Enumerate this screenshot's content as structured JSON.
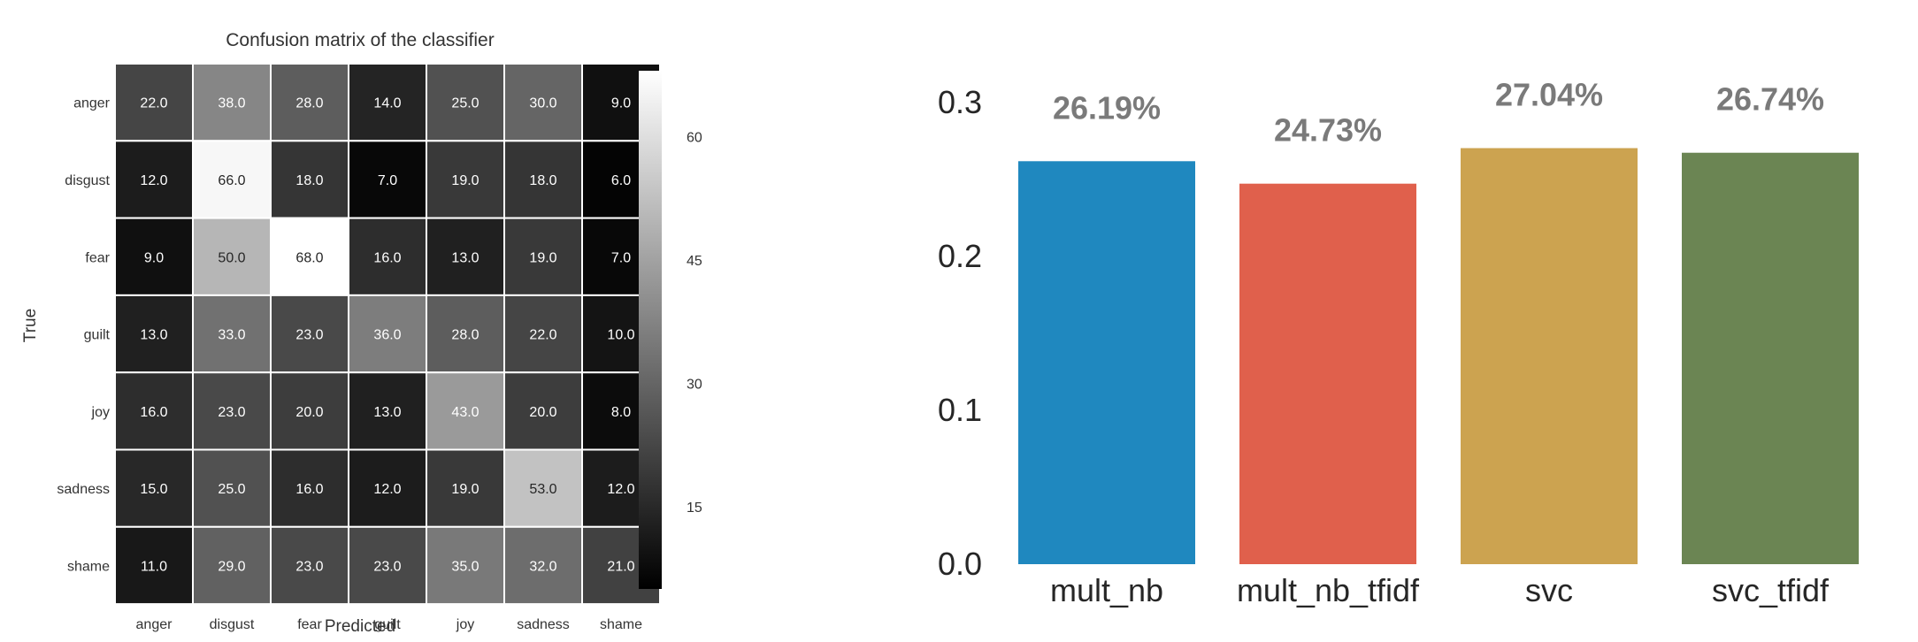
{
  "chart_data": [
    {
      "type": "heatmap",
      "title": "Confusion matrix of the classifier",
      "xlabel": "Predicted",
      "ylabel": "True",
      "x_categories": [
        "anger",
        "disgust",
        "fear",
        "guilt",
        "joy",
        "sadness",
        "shame"
      ],
      "y_categories": [
        "anger",
        "disgust",
        "fear",
        "guilt",
        "joy",
        "sadness",
        "shame"
      ],
      "values": [
        [
          22.0,
          38.0,
          28.0,
          14.0,
          25.0,
          30.0,
          9.0
        ],
        [
          12.0,
          66.0,
          18.0,
          7.0,
          19.0,
          18.0,
          6.0
        ],
        [
          9.0,
          50.0,
          68.0,
          16.0,
          13.0,
          19.0,
          7.0
        ],
        [
          13.0,
          33.0,
          23.0,
          36.0,
          28.0,
          22.0,
          10.0
        ],
        [
          16.0,
          23.0,
          20.0,
          13.0,
          43.0,
          20.0,
          8.0
        ],
        [
          15.0,
          25.0,
          16.0,
          12.0,
          19.0,
          53.0,
          12.0
        ],
        [
          11.0,
          29.0,
          23.0,
          23.0,
          35.0,
          32.0,
          21.0
        ]
      ],
      "cell_labels": [
        [
          "22.0",
          "38.0",
          "28.0",
          "14.0",
          "25.0",
          "30.0",
          "9.0"
        ],
        [
          "12.0",
          "66.0",
          "18.0",
          "7.0",
          "19.0",
          "18.0",
          "6.0"
        ],
        [
          "9.0",
          "50.0",
          "68.0",
          "16.0",
          "13.0",
          "19.0",
          "7.0"
        ],
        [
          "13.0",
          "33.0",
          "23.0",
          "36.0",
          "28.0",
          "22.0",
          "10.0"
        ],
        [
          "16.0",
          "23.0",
          "20.0",
          "13.0",
          "43.0",
          "20.0",
          "8.0"
        ],
        [
          "15.0",
          "25.0",
          "16.0",
          "12.0",
          "19.0",
          "53.0",
          "12.0"
        ],
        [
          "11.0",
          "29.0",
          "23.0",
          "23.0",
          "35.0",
          "32.0",
          "21.0"
        ]
      ],
      "colorbar": {
        "colormap": "gray",
        "range": [
          5,
          68
        ],
        "ticks": [
          15,
          30,
          45,
          60
        ],
        "tick_labels": [
          "15",
          "30",
          "45",
          "60"
        ]
      },
      "grid": true
    },
    {
      "type": "bar",
      "categories": [
        "mult_nb",
        "mult_nb_tfidf",
        "svc",
        "svc_tfidf"
      ],
      "values": [
        0.2619,
        0.2473,
        0.2704,
        0.2674
      ],
      "data_labels": [
        "26.19%",
        "24.73%",
        "27.04%",
        "26.74%"
      ],
      "colors": [
        "#1f88bf",
        "#e0604c",
        "#cca350",
        "#6b8553"
      ],
      "label_color": "#7a7a7a",
      "title": "",
      "xlabel": "",
      "ylabel": "",
      "ylim": [
        0,
        0.3
      ],
      "yticks": [
        0.0,
        0.1,
        0.2,
        0.3
      ],
      "ytick_labels": [
        "0.0",
        "0.1",
        "0.2",
        "0.3"
      ],
      "grid": false
    }
  ]
}
